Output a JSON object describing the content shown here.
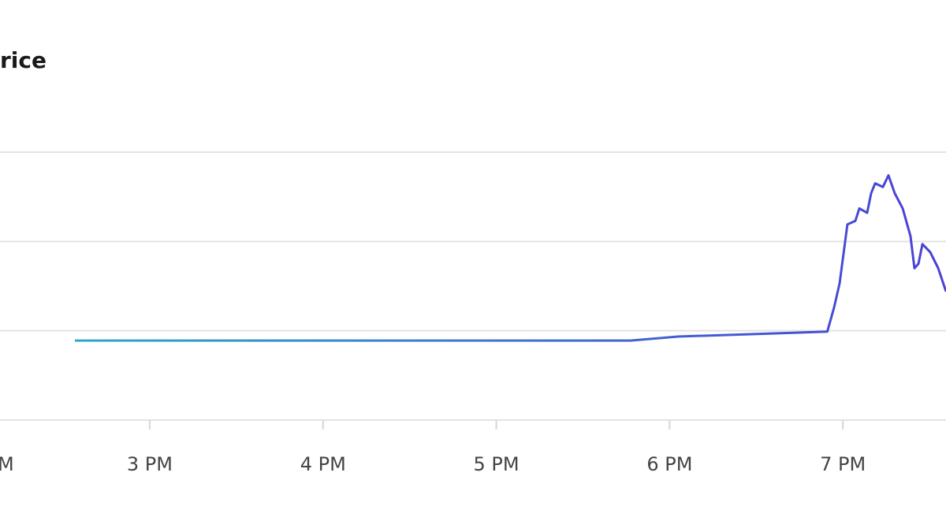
{
  "chart_data": {
    "type": "line",
    "title": "rice",
    "x": [
      14.568,
      17.775,
      18.05,
      18.91,
      18.949,
      18.981,
      19.026,
      19.072,
      19.095,
      19.14,
      19.163,
      19.186,
      19.231,
      19.263,
      19.299,
      19.345,
      19.39,
      19.413,
      19.436,
      19.459,
      19.504,
      19.55,
      19.595
    ],
    "series": [
      {
        "color": "#4b3fd6",
        "gradient": [
          "#2ea8c8",
          "#4b3fd6"
        ],
        "values": [
          0.89,
          0.89,
          0.935,
          0.99,
          1.26,
          1.53,
          2.19,
          2.23,
          2.37,
          2.32,
          2.54,
          2.65,
          2.61,
          2.74,
          2.54,
          2.37,
          2.06,
          1.7,
          1.75,
          1.97,
          1.88,
          1.7,
          1.44
        ]
      }
    ],
    "xlim": [
      14.136,
      19.595
    ],
    "xticks": [
      {
        "value": 14,
        "label": "M"
      },
      {
        "value": 15,
        "label": "3 PM"
      },
      {
        "value": 16,
        "label": "4 PM"
      },
      {
        "value": 17,
        "label": "5 PM"
      },
      {
        "value": 18,
        "label": "6 PM"
      },
      {
        "value": 19,
        "label": "7 PM"
      }
    ],
    "ylim": [
      0,
      3
    ],
    "yticks": [
      0,
      1,
      2,
      3
    ],
    "grid": true
  }
}
